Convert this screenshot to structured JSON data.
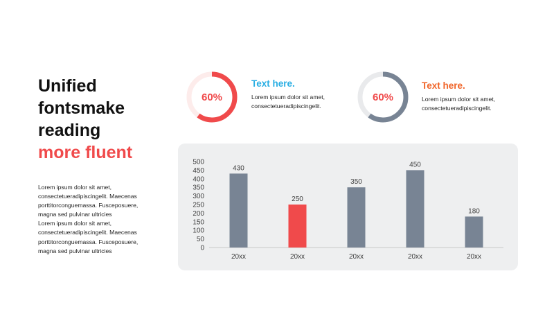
{
  "title": {
    "line1": "Unified",
    "line2": "fontsmake",
    "line3": "reading",
    "accent": "more fluent"
  },
  "body_text": [
    "Lorem ipsum dolor sit amet,",
    "consectetueradipiscingelit. Maecenas",
    "porttitorconguemassa. Fusceposuere,",
    "magna sed pulvinar ultricies",
    "Lorem ipsum dolor sit amet,",
    "consectetueradipiscingelit. Maecenas",
    "porttitorconguemassa. Fusceposuere,",
    "magna sed pulvinar ultricies"
  ],
  "kpis": [
    {
      "percent_label": "60%",
      "value": 0.6,
      "heading": "Text here.",
      "desc_line1": "Lorem ipsum dolor sit amet,",
      "desc_line2": "consectetueradipiscingelit.",
      "ring_color": "#f04a4b",
      "track_color": "#fdeceb",
      "label_color": "#f04a4b",
      "heading_color": "#29aee3"
    },
    {
      "percent_label": "60%",
      "value": 0.6,
      "heading": "Text here.",
      "desc_line1": "Lorem ipsum dolor sit amet,",
      "desc_line2": "consectetueradipiscingelit.",
      "ring_color": "#788494",
      "track_color": "#e9eaec",
      "label_color": "#f04a4b",
      "heading_color": "#f06428"
    }
  ],
  "chart_data": {
    "type": "bar",
    "title": "",
    "xlabel": "",
    "ylabel": "",
    "categories": [
      "20xx",
      "20xx",
      "20xx",
      "20xx",
      "20xx"
    ],
    "values": [
      430,
      250,
      350,
      450,
      180
    ],
    "ylim": [
      0,
      500
    ],
    "yticks": [
      "0",
      "50",
      "100",
      "150",
      "200",
      "250",
      "300",
      "350",
      "400",
      "450",
      "500"
    ],
    "data_labels": [
      "430",
      "250",
      "350",
      "450",
      "180"
    ],
    "grid": false,
    "legend": "none",
    "bar_colors": [
      "#788494",
      "#f04a4b",
      "#788494",
      "#788494",
      "#788494"
    ]
  }
}
